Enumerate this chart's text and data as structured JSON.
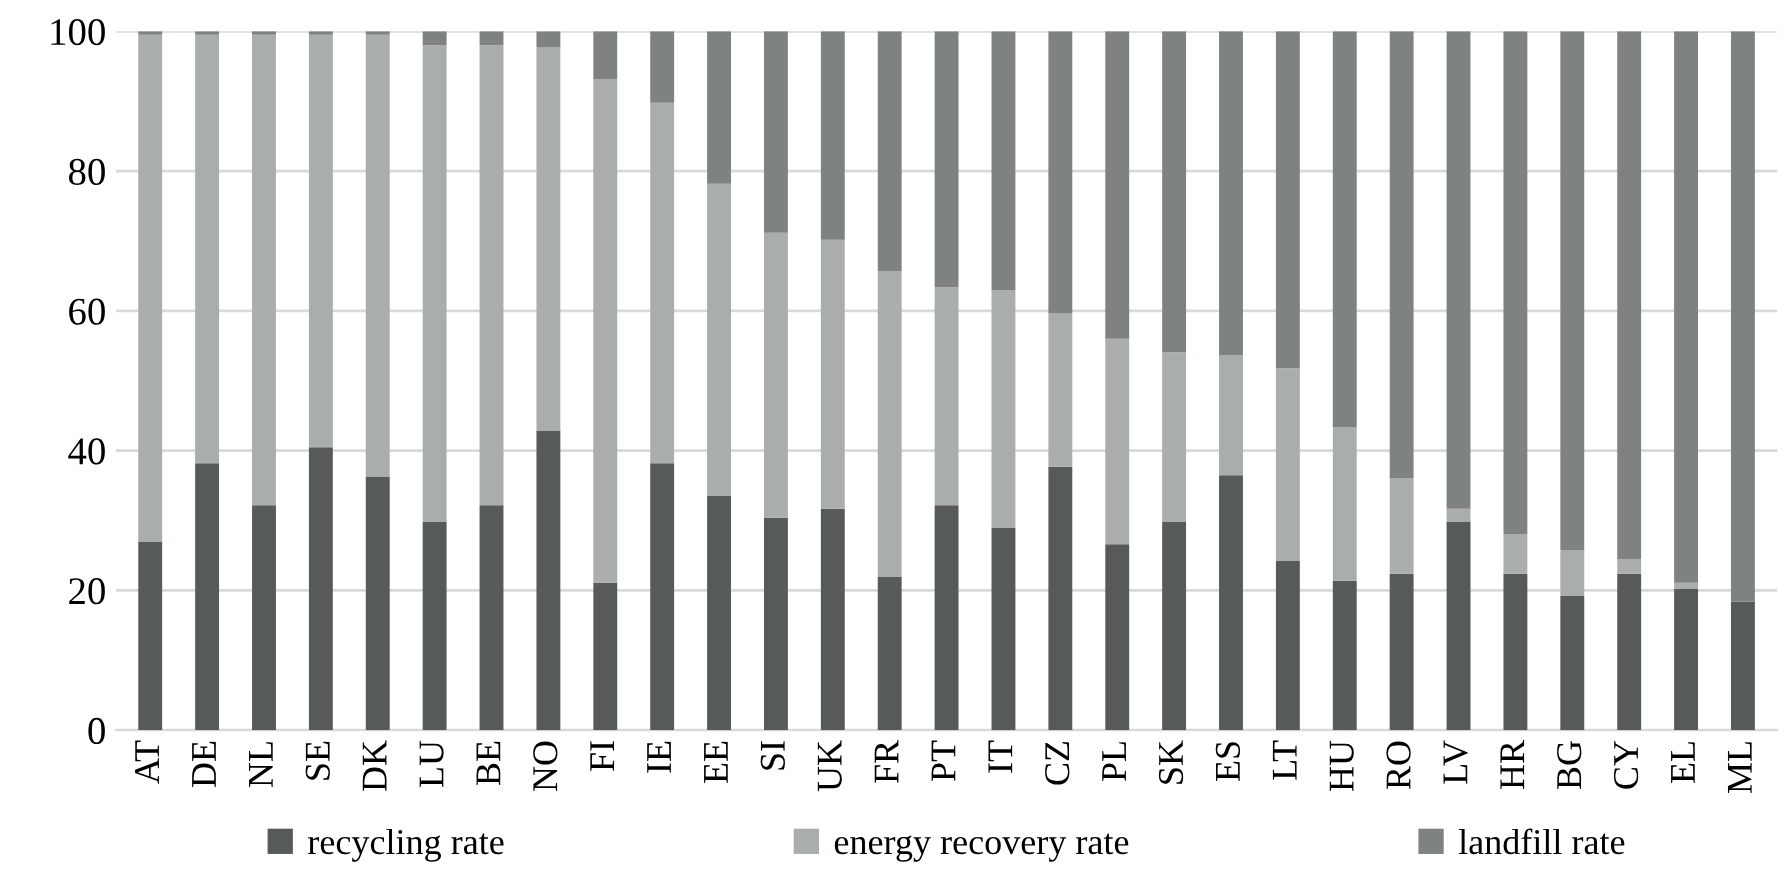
{
  "chart_data": {
    "type": "bar",
    "stacked": true,
    "categories": [
      "AT",
      "DE",
      "NL",
      "SE",
      "DK",
      "LU",
      "BE",
      "NO",
      "FI",
      "IE",
      "EE",
      "SI",
      "UK",
      "FR",
      "PT",
      "IT",
      "CZ",
      "PL",
      "SK",
      "ES",
      "LT",
      "HU",
      "RO",
      "LV",
      "HR",
      "BG",
      "CY",
      "EL",
      "ML"
    ],
    "series": [
      {
        "name": "recycling rate",
        "color": "#575a5a",
        "values": [
          27,
          38.2,
          32.2,
          40.5,
          36.3,
          29.8,
          32.2,
          42.9,
          21.1,
          38.2,
          33.6,
          30.4,
          31.7,
          22,
          32.2,
          29,
          37.7,
          26.6,
          29.8,
          36.5,
          24.3,
          21.4,
          22.4,
          29.8,
          22.4,
          19.2,
          22.4,
          20.2,
          18.4
        ]
      },
      {
        "name": "energy recovery rate",
        "color": "#aaadad",
        "values": [
          72.5,
          61.3,
          67.3,
          59,
          63.2,
          68.2,
          65.8,
          54.8,
          72,
          51.6,
          44.6,
          40.8,
          38.5,
          43.7,
          31.2,
          34,
          22,
          29.4,
          24.3,
          17.2,
          27.5,
          22,
          13.7,
          1.9,
          5.6,
          6.6,
          2.1,
          0.9,
          0
        ]
      },
      {
        "name": "landfill rate",
        "color": "#7f8282",
        "values": [
          0.5,
          0.5,
          0.5,
          0.5,
          0.5,
          2,
          2,
          2.3,
          6.9,
          10.2,
          21.8,
          28.8,
          29.8,
          34.3,
          36.6,
          37,
          40.3,
          44,
          45.9,
          46.3,
          48.2,
          56.6,
          63.9,
          68.3,
          72,
          74.2,
          75.5,
          78.9,
          81.6
        ]
      }
    ],
    "ylim": [
      0,
      100
    ],
    "yticks": [
      0,
      20,
      40,
      60,
      80,
      100
    ],
    "grid": "y",
    "legend": "bottom"
  }
}
